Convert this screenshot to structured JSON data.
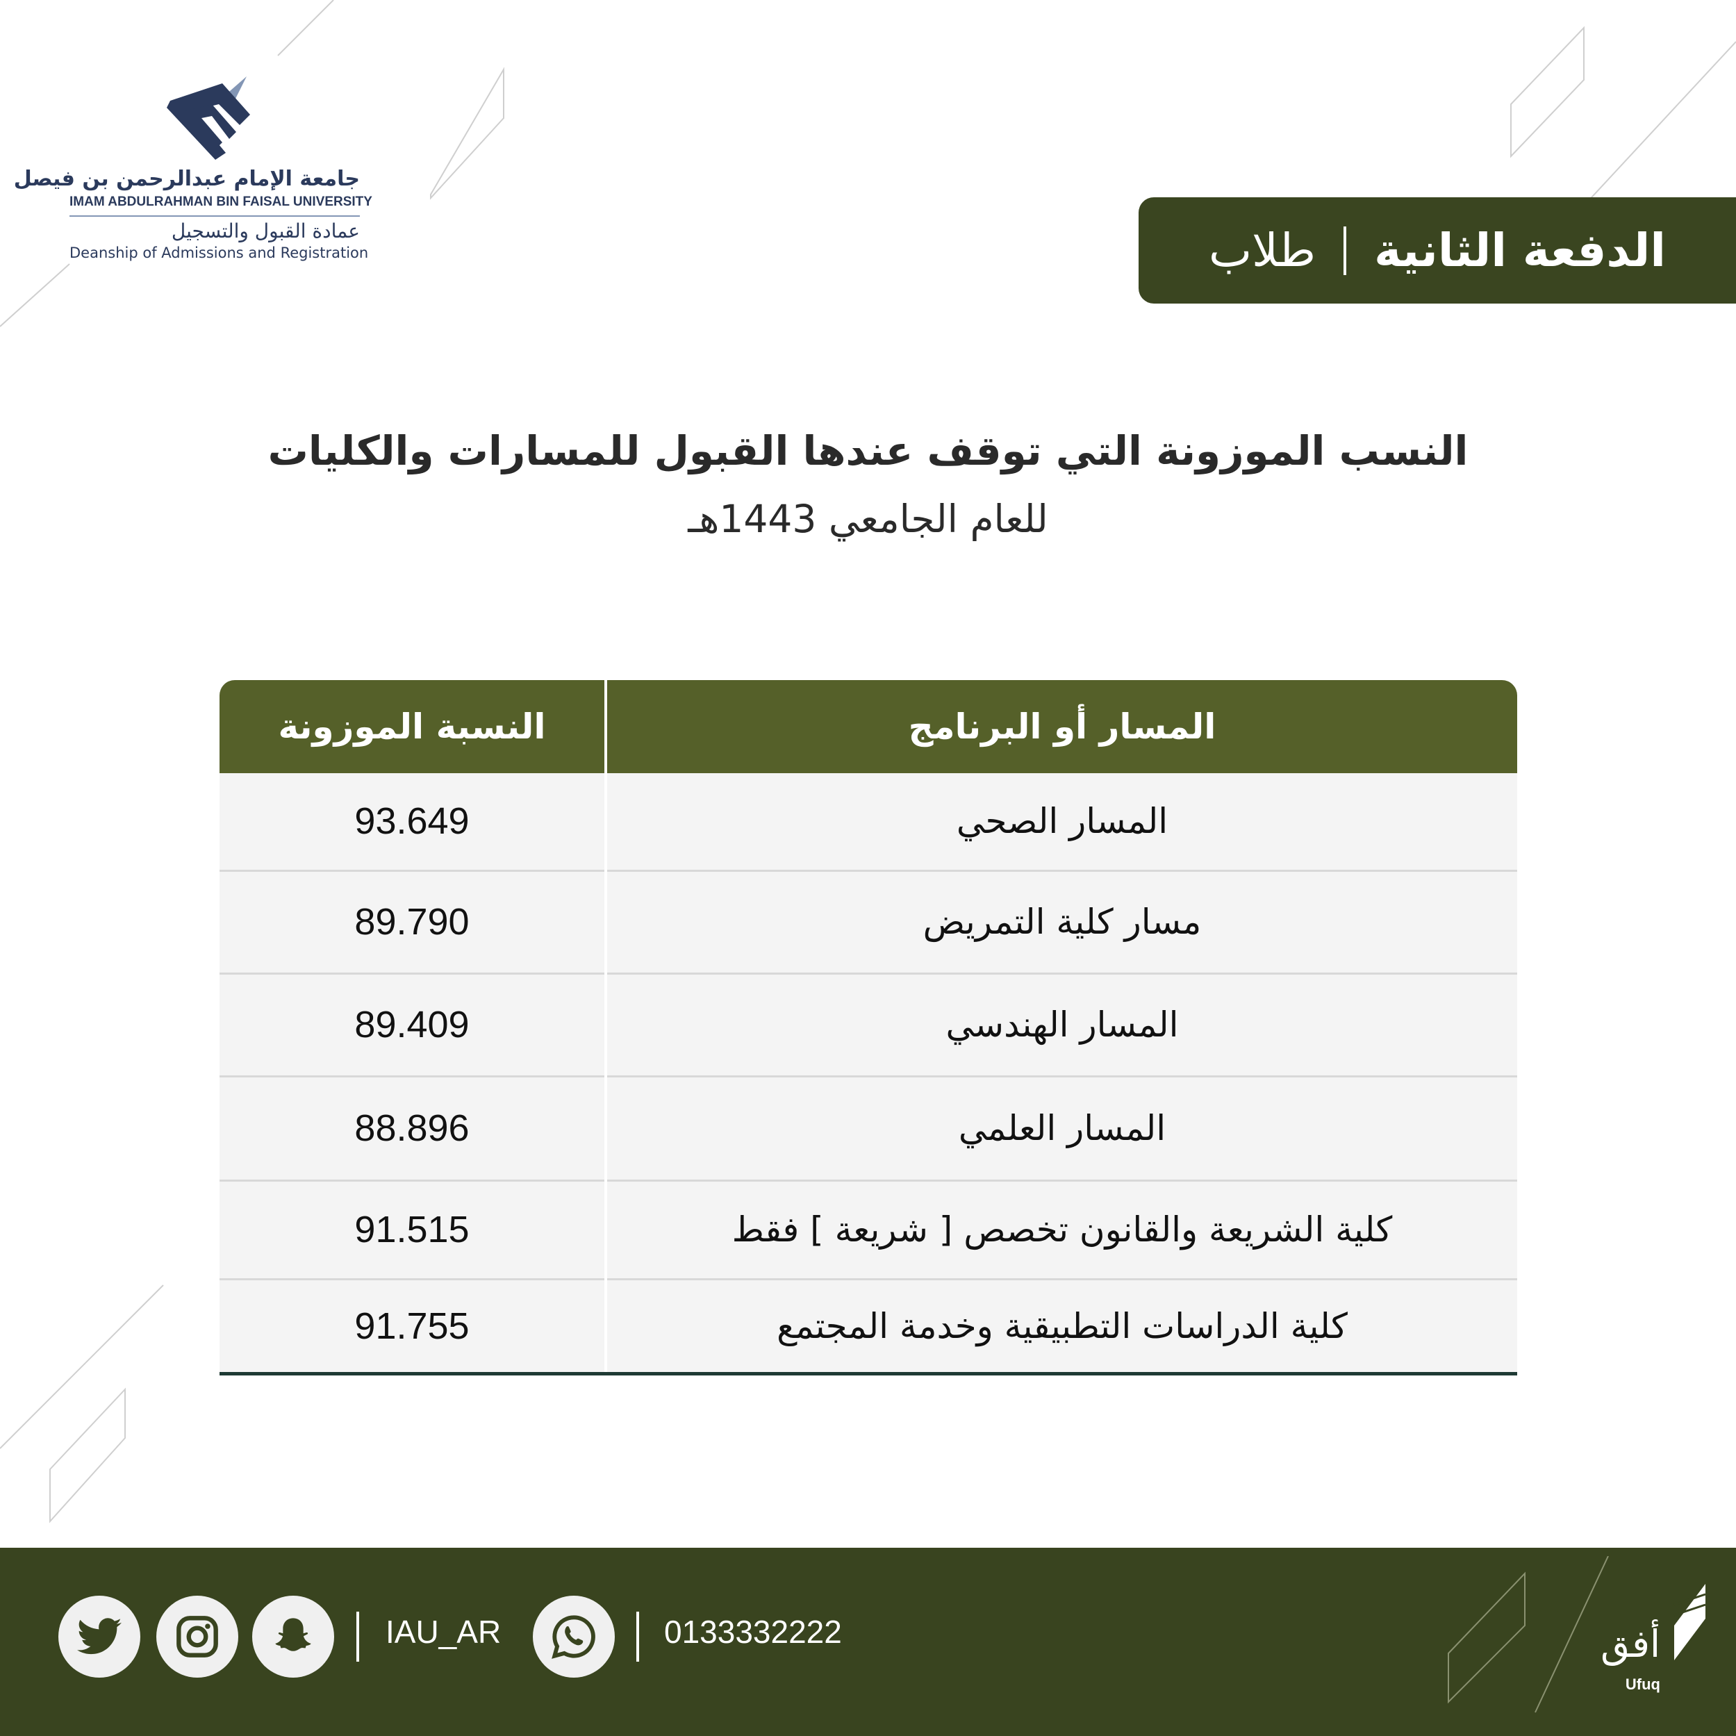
{
  "logo": {
    "arabic_name": "جامعة الإمام عبدالرحمن بن فيصل",
    "english_name": "IMAM ABDULRAHMAN BIN FAISAL UNIVERSITY",
    "dept_arabic": "عمادة القبول والتسجيل",
    "dept_english": "Deanship of Admissions and Registration"
  },
  "badge": {
    "batch": "الدفعة الثانية",
    "group": "طلاب"
  },
  "title": {
    "line1": "النسب الموزونة التي توقف عندها القبول للمسارات والكليات",
    "line2": "للعام الجامعي 1443هـ"
  },
  "table": {
    "headers": [
      "المسار أو البرنامج",
      "النسبة الموزونة"
    ],
    "rows": [
      {
        "program": "المسار الصحي",
        "score": "93.649"
      },
      {
        "program": "مسار كلية التمريض",
        "score": "89.790"
      },
      {
        "program": "المسار الهندسي",
        "score": "89.409"
      },
      {
        "program": "المسار العلمي",
        "score": "88.896"
      },
      {
        "program": "كلية الشريعة والقانون تخصص [ شريعة ] فقط",
        "score": "91.515"
      },
      {
        "program": "كلية الدراسات التطبيقية وخدمة المجتمع",
        "score": "91.755"
      }
    ]
  },
  "footer": {
    "handle": "IAU_AR",
    "phone": "0133332222",
    "ufuq_ar": "أفق",
    "ufuq_en": "Ufuq",
    "icons": [
      "twitter-icon",
      "instagram-icon",
      "snapchat-icon",
      "whatsapp-icon"
    ]
  },
  "colors": {
    "olive_dark": "#39441f",
    "olive_header": "#556029",
    "navy": "#2b3a5c"
  }
}
